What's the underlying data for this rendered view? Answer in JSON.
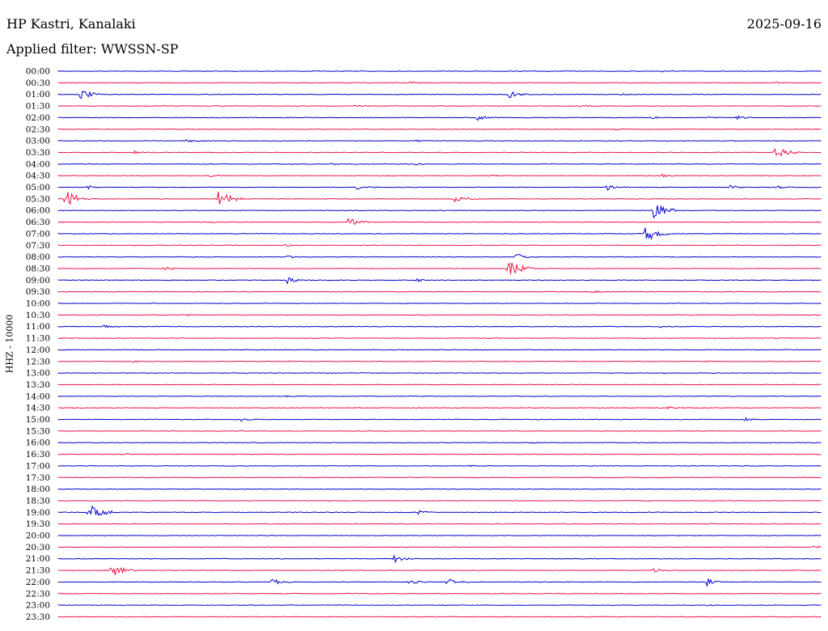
{
  "header": {
    "station": "HP Kastri, Kanalaki",
    "date": "2025-09-16",
    "filter": "Applied filter: WWSSN-SP",
    "channel": "HHZ - 10000"
  },
  "colors": {
    "odd_trace": "#0000cc",
    "even_trace": "#ee1144"
  },
  "chart_data": {
    "type": "line",
    "title": "HP Kastri, Kanalaki",
    "subtitle": "Applied filter: WWSSN-SP",
    "ylabel": "HHZ - 10000",
    "date": "2025-09-16",
    "row_interval_minutes": 30,
    "color_alternation": [
      "blue",
      "red"
    ],
    "rows": [
      {
        "label": "00:00",
        "events": [
          {
            "t": 0.79,
            "a": 1
          }
        ]
      },
      {
        "label": "00:30",
        "events": [
          {
            "t": 0.46,
            "a": 2
          },
          {
            "t": 0.94,
            "a": 1
          }
        ]
      },
      {
        "label": "01:00",
        "events": [
          {
            "t": 0.03,
            "a": 6
          },
          {
            "t": 0.59,
            "a": 5
          },
          {
            "t": 0.74,
            "a": 1
          }
        ]
      },
      {
        "label": "01:30",
        "events": [
          {
            "t": 0.39,
            "a": 1
          },
          {
            "t": 0.69,
            "a": 1
          }
        ]
      },
      {
        "label": "02:00",
        "events": [
          {
            "t": 0.55,
            "a": 3
          },
          {
            "t": 0.78,
            "a": 2
          },
          {
            "t": 0.85,
            "a": 1
          },
          {
            "t": 0.89,
            "a": 2
          }
        ]
      },
      {
        "label": "02:30",
        "events": [
          {
            "t": 0.73,
            "a": 1
          }
        ]
      },
      {
        "label": "03:00",
        "events": [
          {
            "t": 0.17,
            "a": 2
          },
          {
            "t": 0.47,
            "a": 1
          }
        ]
      },
      {
        "label": "03:30",
        "events": [
          {
            "t": 0.1,
            "a": 2
          },
          {
            "t": 0.94,
            "a": 7
          }
        ]
      },
      {
        "label": "04:00",
        "events": [
          {
            "t": 0.36,
            "a": 1
          },
          {
            "t": 0.47,
            "a": 1
          }
        ]
      },
      {
        "label": "04:30",
        "events": [
          {
            "t": 0.2,
            "a": 2
          },
          {
            "t": 0.57,
            "a": 1
          },
          {
            "t": 0.79,
            "a": 2
          }
        ]
      },
      {
        "label": "05:00",
        "events": [
          {
            "t": 0.04,
            "a": 2
          },
          {
            "t": 0.39,
            "a": 3
          },
          {
            "t": 0.72,
            "a": 3
          },
          {
            "t": 0.88,
            "a": 3
          },
          {
            "t": 0.94,
            "a": 2
          }
        ]
      },
      {
        "label": "05:30",
        "events": [
          {
            "t": 0.01,
            "a": 9
          },
          {
            "t": 0.21,
            "a": 9
          },
          {
            "t": 0.52,
            "a": 6
          }
        ]
      },
      {
        "label": "06:00",
        "events": [
          {
            "t": 0.78,
            "a": 9
          }
        ]
      },
      {
        "label": "06:30",
        "events": [
          {
            "t": 0.38,
            "a": 5
          },
          {
            "t": 0.2,
            "a": 1
          }
        ]
      },
      {
        "label": "07:00",
        "events": [
          {
            "t": 0.77,
            "a": 9
          }
        ]
      },
      {
        "label": "07:30",
        "events": [
          {
            "t": 0.3,
            "a": 1
          }
        ]
      },
      {
        "label": "08:00",
        "events": [
          {
            "t": 0.3,
            "a": 2
          },
          {
            "t": 0.6,
            "a": 4
          }
        ]
      },
      {
        "label": "08:30",
        "events": [
          {
            "t": 0.14,
            "a": 3
          },
          {
            "t": 0.59,
            "a": 9
          }
        ]
      },
      {
        "label": "09:00",
        "events": [
          {
            "t": 0.3,
            "a": 4
          },
          {
            "t": 0.47,
            "a": 2
          }
        ]
      },
      {
        "label": "09:30",
        "events": [
          {
            "t": 0.7,
            "a": 2
          }
        ]
      },
      {
        "label": "10:00",
        "events": []
      },
      {
        "label": "10:30",
        "events": [
          {
            "t": 0.17,
            "a": 1
          }
        ]
      },
      {
        "label": "11:00",
        "events": [
          {
            "t": 0.06,
            "a": 2
          },
          {
            "t": 0.79,
            "a": 1
          }
        ]
      },
      {
        "label": "11:30",
        "events": []
      },
      {
        "label": "12:00",
        "events": [
          {
            "t": 0.95,
            "a": 1
          }
        ]
      },
      {
        "label": "12:30",
        "events": [
          {
            "t": 0.1,
            "a": 1
          },
          {
            "t": 0.3,
            "a": 1
          },
          {
            "t": 0.85,
            "a": 1
          }
        ]
      },
      {
        "label": "13:00",
        "events": []
      },
      {
        "label": "13:30",
        "events": []
      },
      {
        "label": "14:00",
        "events": [
          {
            "t": 0.3,
            "a": 1
          }
        ]
      },
      {
        "label": "14:30",
        "events": [
          {
            "t": 0.8,
            "a": 2
          }
        ]
      },
      {
        "label": "15:00",
        "events": [
          {
            "t": 0.24,
            "a": 2
          },
          {
            "t": 0.9,
            "a": 2
          }
        ]
      },
      {
        "label": "15:30",
        "events": [
          {
            "t": 0.24,
            "a": 1
          }
        ]
      },
      {
        "label": "16:00",
        "events": [
          {
            "t": 0.62,
            "a": 1
          }
        ]
      },
      {
        "label": "16:30",
        "events": [
          {
            "t": 0.09,
            "a": 1
          }
        ]
      },
      {
        "label": "17:00",
        "events": [
          {
            "t": 0.54,
            "a": 1
          }
        ]
      },
      {
        "label": "17:30",
        "events": []
      },
      {
        "label": "18:00",
        "events": []
      },
      {
        "label": "18:30",
        "events": []
      },
      {
        "label": "19:00",
        "events": [
          {
            "t": 0.04,
            "a": 9
          },
          {
            "t": 0.47,
            "a": 3
          }
        ]
      },
      {
        "label": "19:30",
        "events": [
          {
            "t": 0.85,
            "a": 1
          }
        ]
      },
      {
        "label": "20:00",
        "events": []
      },
      {
        "label": "20:30",
        "events": [
          {
            "t": 0.99,
            "a": 2
          }
        ]
      },
      {
        "label": "21:00",
        "events": [
          {
            "t": 0.44,
            "a": 4
          }
        ]
      },
      {
        "label": "21:30",
        "events": [
          {
            "t": 0.07,
            "a": 7
          },
          {
            "t": 0.78,
            "a": 3
          }
        ]
      },
      {
        "label": "22:00",
        "events": [
          {
            "t": 0.28,
            "a": 4
          },
          {
            "t": 0.46,
            "a": 3
          },
          {
            "t": 0.51,
            "a": 4
          },
          {
            "t": 0.85,
            "a": 4
          }
        ]
      },
      {
        "label": "22:30",
        "events": []
      },
      {
        "label": "23:00",
        "events": [
          {
            "t": 0.85,
            "a": 1
          }
        ]
      },
      {
        "label": "23:30",
        "events": []
      }
    ]
  }
}
